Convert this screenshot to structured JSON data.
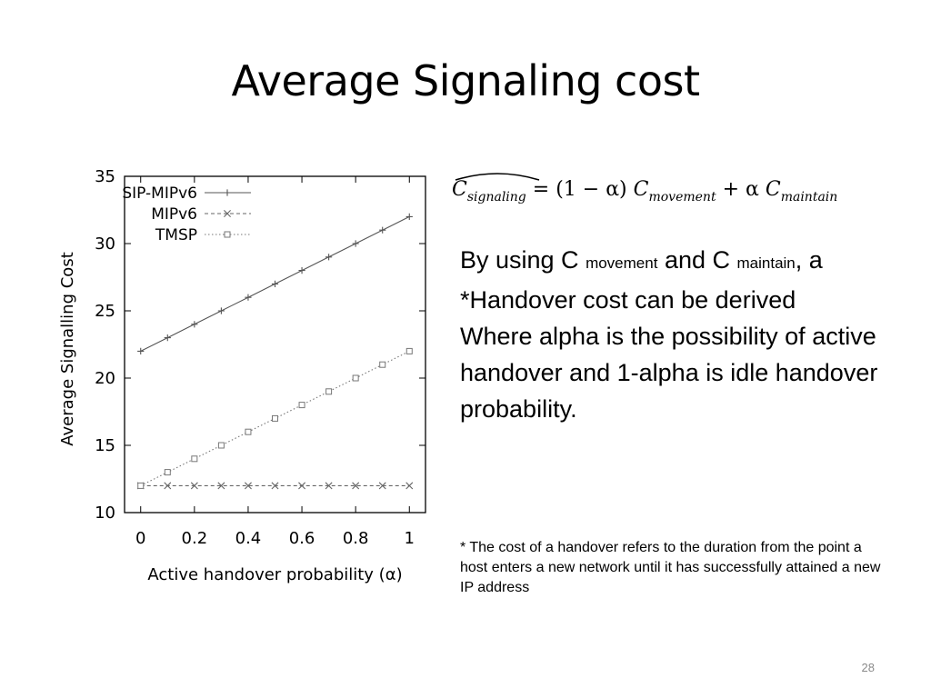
{
  "slide": {
    "title": "Average Signaling cost",
    "page_number": "28"
  },
  "formula": {
    "lhs": "C",
    "lhs_sub": "signaling",
    "eq": "= (1 − α) ",
    "term1": "C",
    "term1_sub": "movement",
    "plus": " + α ",
    "term2": "C",
    "term2_sub": "maintain"
  },
  "text": {
    "p1_a": "By using C ",
    "p1_sub1": "movement",
    "p1_b": " and C ",
    "p1_sub2": "maintain",
    "p1_c": ", a *Handover cost can be derived",
    "p2": "Where alpha is the possibility of active handover and 1-alpha is idle handover probability.",
    "footnote": "* The cost of a handover refers to the duration from the point a host enters a new network until it has successfully attained a new IP address"
  },
  "chart_data": {
    "type": "line",
    "xlabel": "Active handover probability (α)",
    "ylabel": "Average Signalling Cost",
    "xlim": [
      -0.06,
      1.06
    ],
    "ylim": [
      10,
      35
    ],
    "x_ticks": [
      "0",
      "0.2",
      "0.4",
      "0.6",
      "0.8",
      "1"
    ],
    "x_tick_values": [
      0,
      0.2,
      0.4,
      0.6,
      0.8,
      1
    ],
    "y_ticks": [
      "10",
      "15",
      "20",
      "25",
      "30",
      "35"
    ],
    "y_tick_values": [
      10,
      15,
      20,
      25,
      30,
      35
    ],
    "grid": false,
    "legend_position": "top-left",
    "x": [
      0,
      0.1,
      0.2,
      0.3,
      0.4,
      0.5,
      0.6,
      0.7,
      0.8,
      0.9,
      1.0
    ],
    "series": [
      {
        "name": "SIP-MIPv6",
        "marker": "plus",
        "dash": "solid",
        "color": "#555555",
        "values": [
          22,
          23,
          24,
          25,
          26,
          27,
          28,
          29,
          30,
          31,
          32
        ]
      },
      {
        "name": "MIPv6",
        "marker": "cross",
        "dash": "dashed",
        "color": "#666666",
        "values": [
          12,
          12,
          12,
          12,
          12,
          12,
          12,
          12,
          12,
          12,
          12
        ]
      },
      {
        "name": "TMSP",
        "marker": "square",
        "dash": "dotted",
        "color": "#777777",
        "values": [
          12,
          13,
          14,
          15,
          16,
          17,
          18,
          19,
          20,
          21,
          22
        ]
      }
    ]
  }
}
